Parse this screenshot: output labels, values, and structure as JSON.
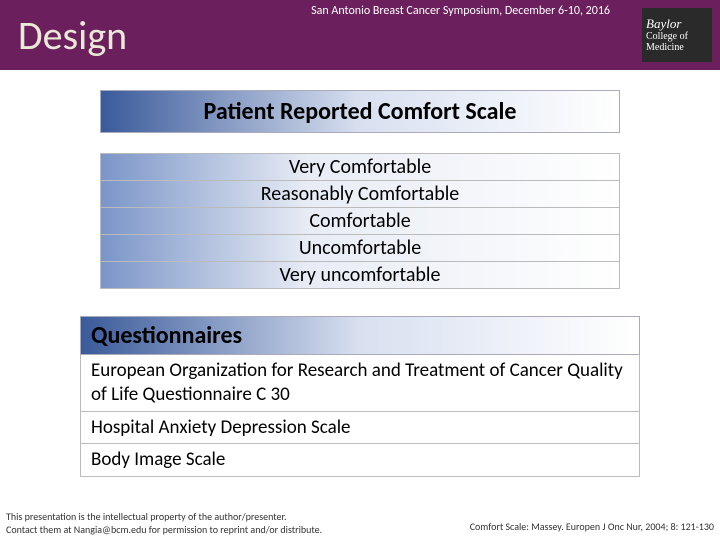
{
  "header": {
    "title": "Design",
    "conference": "San Antonio Breast Cancer Symposium, December 6-10, 2016",
    "logo": {
      "line1": "Baylor",
      "line2": "College of",
      "line3": "Medicine"
    },
    "bg_color": "#6b1f5c",
    "title_color": "#eae8d8"
  },
  "scale": {
    "title": "Patient Reported Comfort Scale",
    "items": [
      "Very Comfortable",
      "Reasonably Comfortable",
      "Comfortable",
      "Uncomfortable",
      "Very uncomfortable"
    ],
    "gradient_start": "#3a5a9a",
    "gradient_mid": "#d8e0f0"
  },
  "questionnaires": {
    "header": "Questionnaires",
    "items": [
      "European Organization for Research and Treatment of Cancer Quality of Life Questionnaire C 30",
      "Hospital Anxiety Depression Scale",
      "Body Image Scale"
    ]
  },
  "footer": {
    "disclaimer_line1": "This presentation is the intellectual property of the author/presenter.",
    "disclaimer_line2": "Contact them at Nangia@bcm.edu for permission to reprint and/or distribute.",
    "citation": "Comfort Scale: Massey. Europen J Onc Nur, 2004; 8: 121-130"
  }
}
